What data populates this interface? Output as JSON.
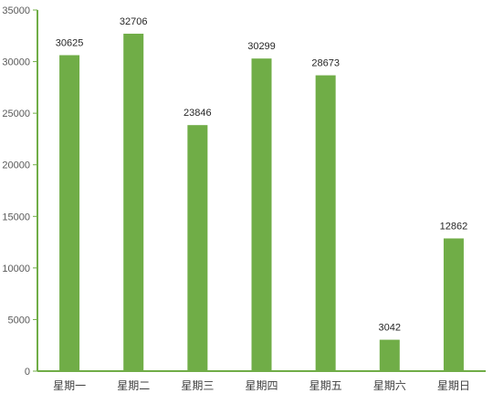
{
  "chart_data": {
    "type": "bar",
    "categories": [
      "星期一",
      "星期二",
      "星期三",
      "星期四",
      "星期五",
      "星期六",
      "星期日"
    ],
    "values": [
      30625,
      32706,
      23846,
      30299,
      28673,
      3042,
      12862
    ],
    "ylim": [
      0,
      35000
    ],
    "yticks": [
      0,
      5000,
      10000,
      15000,
      20000,
      25000,
      30000,
      35000
    ],
    "grid": false,
    "legend": "none",
    "data_labels": true,
    "bar_color": "#70AD47",
    "axis_color": "#70AD47"
  }
}
